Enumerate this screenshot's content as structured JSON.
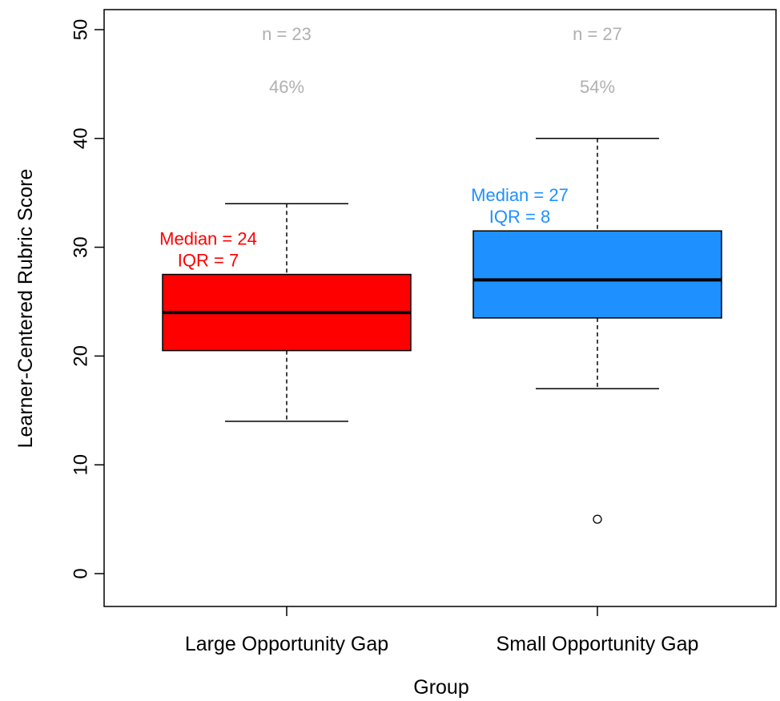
{
  "chart_data": {
    "type": "box",
    "xlabel": "Group",
    "ylabel": "Learner-Centered Rubric Score",
    "ylim": [
      0,
      50
    ],
    "yticks": [
      "0",
      "10",
      "20",
      "30",
      "40",
      "50"
    ],
    "grid": false,
    "groups": [
      {
        "name": "Large Opportunity Gap",
        "color": "#ff0000",
        "label_color": "#ff0000",
        "whisker_low": 14,
        "q1": 20.5,
        "median": 24,
        "q3": 27.5,
        "whisker_high": 34,
        "outliers": [],
        "n_label": "n = 23",
        "pct_label": "46%",
        "median_label": "Median = 24",
        "iqr_label": "IQR = 7"
      },
      {
        "name": "Small Opportunity Gap",
        "color": "#1e90ff",
        "label_color": "#1e90ff",
        "whisker_low": 17,
        "q1": 23.5,
        "median": 27,
        "q3": 31.5,
        "whisker_high": 40,
        "outliers": [
          5
        ],
        "n_label": "n = 27",
        "pct_label": "54%",
        "median_label": "Median = 27",
        "iqr_label": "IQR = 8"
      }
    ]
  }
}
